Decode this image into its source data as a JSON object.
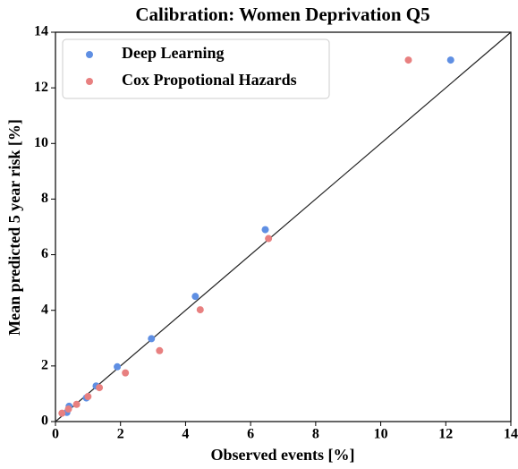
{
  "chart_data": {
    "type": "scatter",
    "title": "Calibration: Women Deprivation Q5",
    "x_label": "Observed events [%]",
    "y_label": "Mean predicted 5 year risk [%]",
    "xlim": [
      0,
      14
    ],
    "ylim": [
      0,
      14
    ],
    "xticks": [
      0,
      2,
      4,
      6,
      8,
      10,
      12,
      14
    ],
    "yticks": [
      0,
      2,
      4,
      6,
      8,
      10,
      12,
      14
    ],
    "legend": "upper left",
    "series": [
      {
        "name": "Deep Learning",
        "color": "#5f8fe3",
        "x": [
          0.35,
          0.42,
          0.95,
          1.25,
          1.9,
          2.95,
          4.3,
          6.45,
          12.15
        ],
        "values": [
          0.33,
          0.55,
          0.85,
          1.28,
          1.97,
          2.98,
          4.5,
          6.9,
          13.0
        ]
      },
      {
        "name": "Cox Propotional Hazards",
        "color": "#e88080",
        "x": [
          0.2,
          0.4,
          0.65,
          1.0,
          1.35,
          2.15,
          3.2,
          4.45,
          6.55,
          10.85
        ],
        "values": [
          0.3,
          0.45,
          0.62,
          0.9,
          1.22,
          1.75,
          2.55,
          4.02,
          6.58,
          13.0
        ]
      }
    ]
  }
}
